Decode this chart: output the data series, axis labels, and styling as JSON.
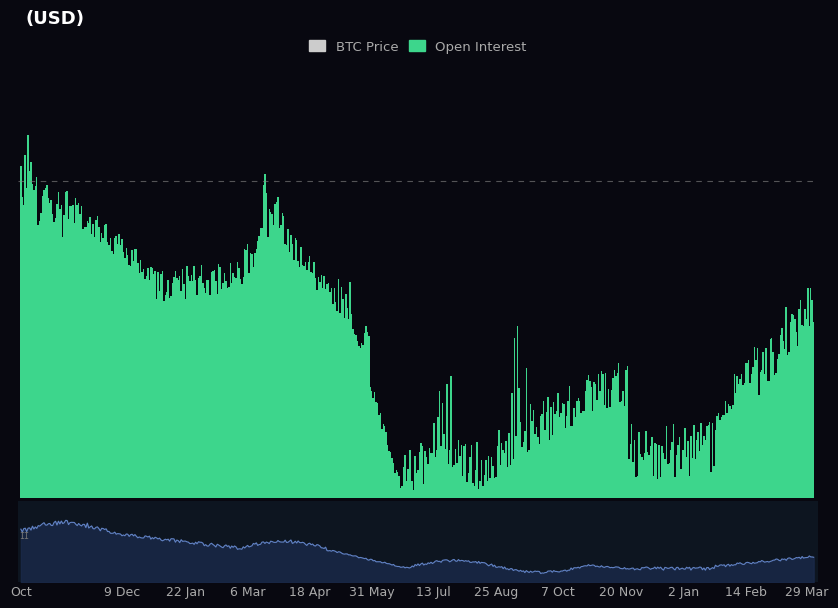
{
  "background_color": "#080810",
  "title_text": "(USD)",
  "title_color": "#ffffff",
  "title_fontsize": 13,
  "legend_btc_color": "#cccccc",
  "legend_oi_color": "#3dd68c",
  "x_tick_labels": [
    "Oct",
    "9 Dec",
    "22 Jan",
    "6 Mar",
    "18 Apr",
    "31 May",
    "13 Jul",
    "25 Aug",
    "7 Oct",
    "20 Nov",
    "2 Jan",
    "14 Feb",
    "29 Mar"
  ],
  "tick_color": "#aaaaaa",
  "tick_fontsize": 9,
  "dashed_line_color": "#888888",
  "open_interest_color": "#3dd68c",
  "btc_price_color": "#6688cc",
  "btc_price_fill": "#1a2a4a",
  "mini_bg_color": "#0d1520"
}
